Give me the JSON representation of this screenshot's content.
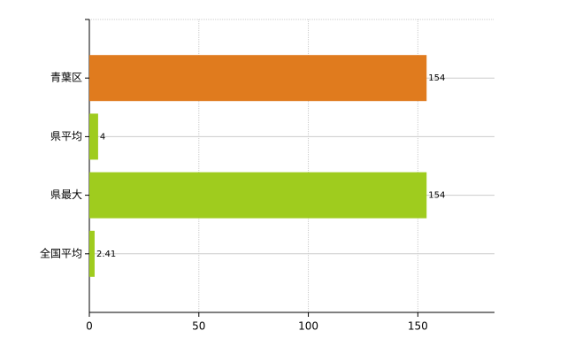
{
  "chart_data": {
    "type": "bar",
    "orientation": "horizontal",
    "categories": [
      "青葉区",
      "県平均",
      "県最大",
      "全国平均"
    ],
    "values": [
      154,
      4,
      154,
      2.41
    ],
    "colors": [
      "#e07b1e",
      "#9fcc1e",
      "#9fcc1e",
      "#9fcc1e"
    ],
    "xlim": [
      0,
      185
    ],
    "xticks": [
      0,
      50,
      100,
      150
    ],
    "grid": true
  }
}
